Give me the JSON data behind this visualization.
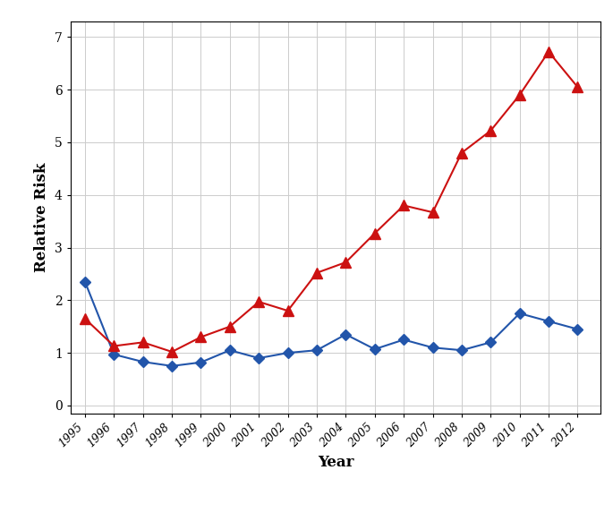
{
  "years": [
    1995,
    1996,
    1997,
    1998,
    1999,
    2000,
    2001,
    2002,
    2003,
    2004,
    2005,
    2006,
    2007,
    2008,
    2009,
    2010,
    2011,
    2012
  ],
  "men": [
    2.35,
    0.97,
    0.83,
    0.75,
    0.82,
    1.05,
    0.9,
    1.0,
    1.05,
    1.35,
    1.07,
    1.25,
    1.1,
    1.05,
    1.2,
    1.75,
    1.6,
    1.45
  ],
  "women": [
    1.65,
    1.13,
    1.2,
    1.02,
    1.3,
    1.5,
    1.97,
    1.8,
    2.52,
    2.72,
    3.27,
    3.8,
    3.67,
    4.8,
    5.22,
    5.9,
    6.72,
    6.05
  ],
  "men_color": "#2255aa",
  "women_color": "#cc1111",
  "xlabel": "Year",
  "ylabel": "Relative Risk",
  "xlim": [
    1994.5,
    2012.8
  ],
  "ylim": [
    -0.15,
    7.3
  ],
  "yticks": [
    0,
    1,
    2,
    3,
    4,
    5,
    6,
    7
  ],
  "background_color": "#ffffff",
  "grid_color": "#cccccc"
}
